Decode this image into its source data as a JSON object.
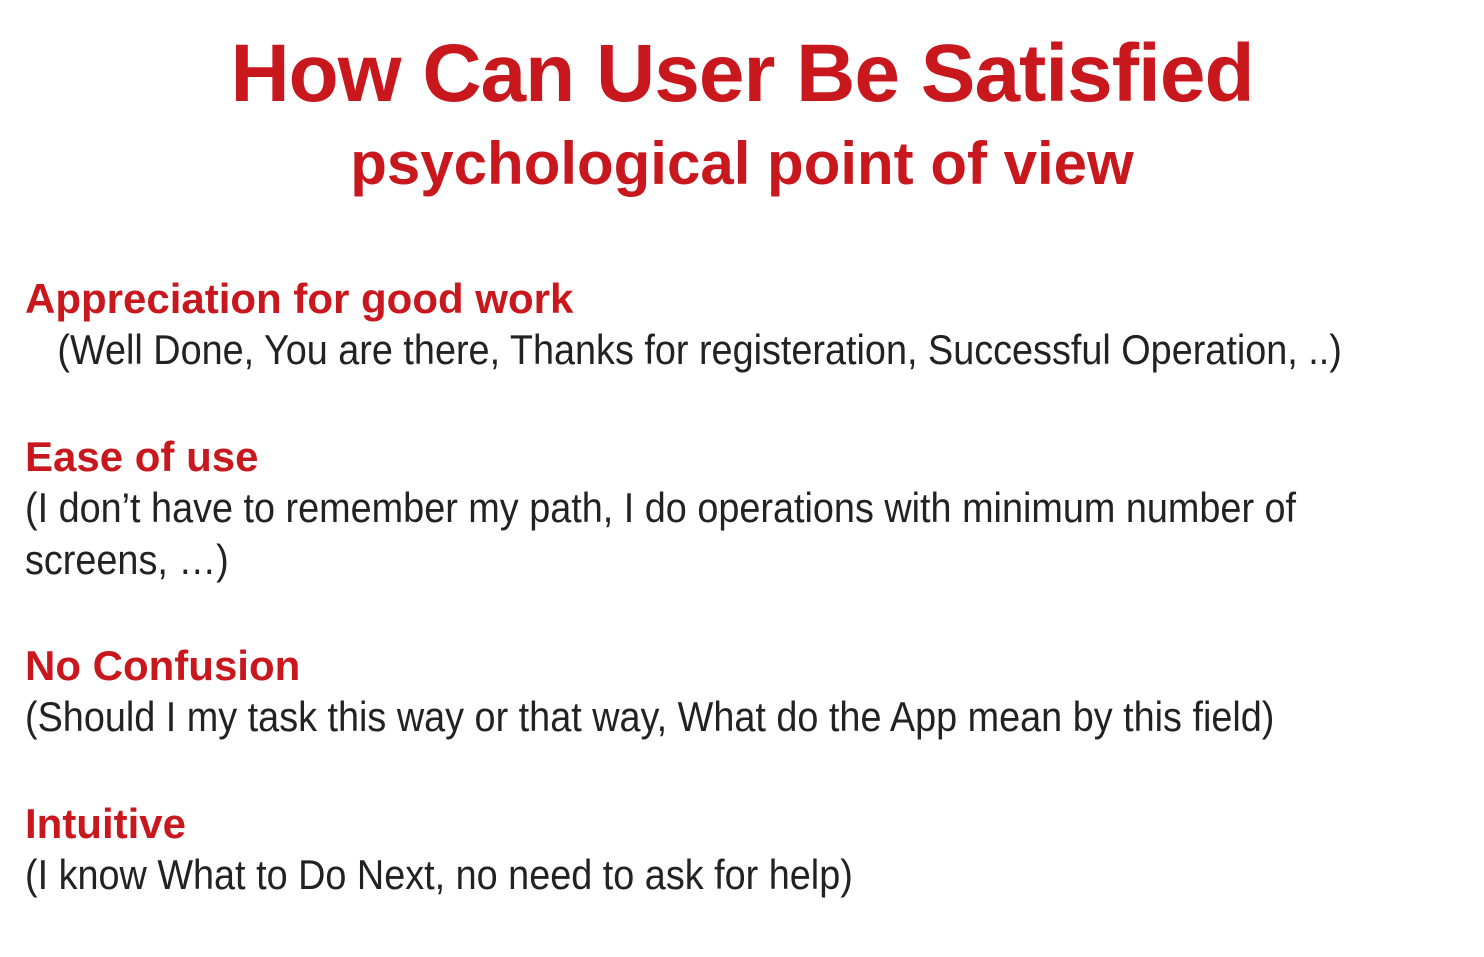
{
  "slide": {
    "title": "How Can User Be Satisfied",
    "subtitle": "psychological point of view",
    "items": [
      {
        "heading": "Appreciation for good work",
        "description": "(Well Done, You are there, Thanks for registeration, Successful Operation, ..)"
      },
      {
        "heading": "Ease of use",
        "description": "(I don’t have to remember my path, I do operations with minimum number of screens, …)"
      },
      {
        "heading": "No Confusion",
        "description": "(Should I my task this way or that way, What do the App mean by this field)"
      },
      {
        "heading": "Intuitive",
        "description": "(I know What to Do Next, no need to ask for help)"
      }
    ],
    "colors": {
      "accent": "#c8181e",
      "text": "#222222",
      "background": "#ffffff"
    }
  }
}
